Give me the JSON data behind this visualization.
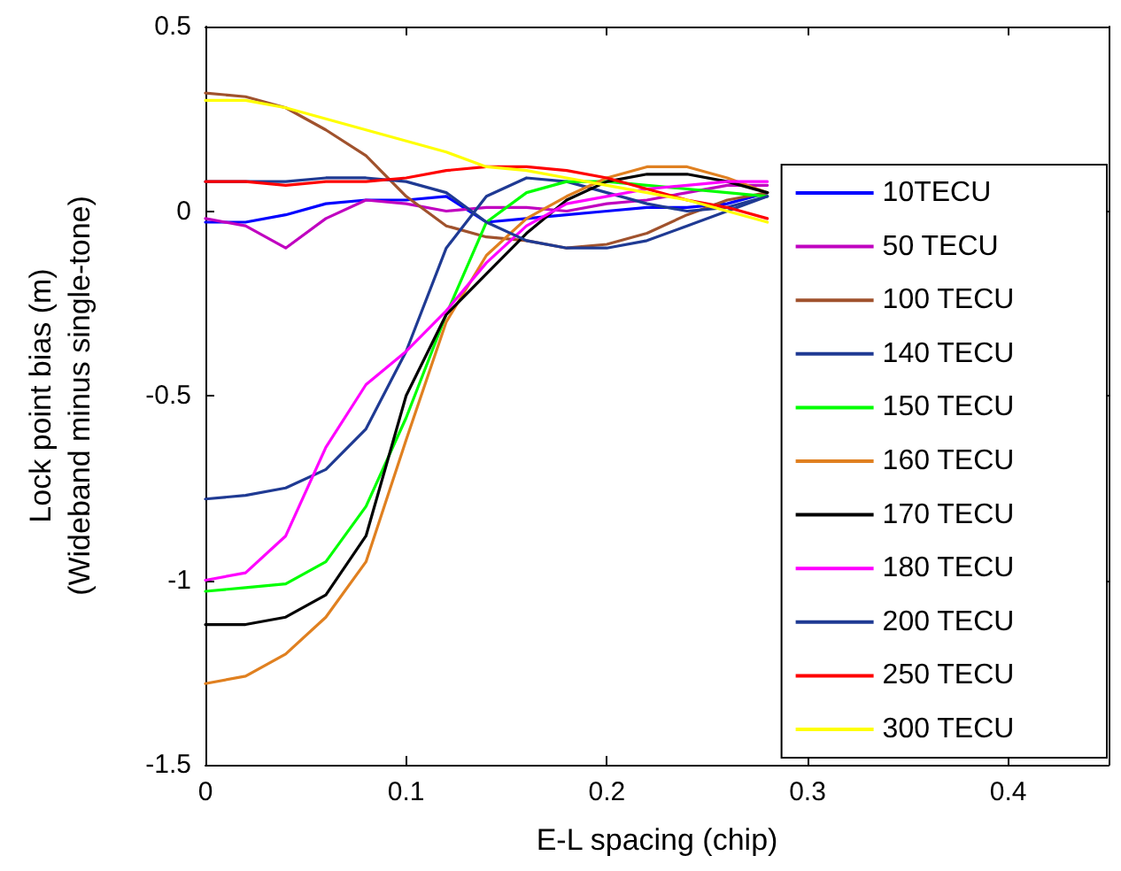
{
  "chart_data": {
    "type": "line",
    "xlabel": "E-L spacing (chip)",
    "ylabel": "Lock point bias (m)\n(Wideband minus single-tone)",
    "x": [
      0,
      0.02,
      0.04,
      0.06,
      0.08,
      0.1,
      0.12,
      0.14,
      0.16,
      0.18,
      0.2,
      0.22,
      0.24,
      0.26,
      0.28
    ],
    "series": [
      {
        "name": "10TECU",
        "color": "#0000ff",
        "values": [
          -0.03,
          -0.03,
          -0.01,
          0.02,
          0.03,
          0.03,
          0.04,
          -0.03,
          -0.02,
          -0.01,
          0.0,
          0.01,
          0.01,
          0.02,
          0.05
        ]
      },
      {
        "name": "50 TECU",
        "color": "#c000c0",
        "values": [
          -0.02,
          -0.04,
          -0.1,
          -0.02,
          0.03,
          0.02,
          0.0,
          0.01,
          0.01,
          0.0,
          0.02,
          0.03,
          0.05,
          0.07,
          0.07
        ]
      },
      {
        "name": "100 TECU",
        "color": "#a0522d",
        "values": [
          0.32,
          0.31,
          0.28,
          0.22,
          0.15,
          0.04,
          -0.04,
          -0.07,
          -0.08,
          -0.1,
          -0.09,
          -0.06,
          -0.01,
          0.03,
          0.05
        ]
      },
      {
        "name": "140 TECU",
        "color": "#1f3a93",
        "values": [
          -0.78,
          -0.77,
          -0.75,
          -0.7,
          -0.59,
          -0.38,
          -0.1,
          0.04,
          0.09,
          0.08,
          0.05,
          0.02,
          0.0,
          0.01,
          0.04
        ]
      },
      {
        "name": "150 TECU",
        "color": "#00ff00",
        "values": [
          -1.03,
          -1.02,
          -1.01,
          -0.95,
          -0.8,
          -0.56,
          -0.28,
          -0.03,
          0.05,
          0.08,
          0.08,
          0.07,
          0.06,
          0.05,
          0.04
        ]
      },
      {
        "name": "160 TECU",
        "color": "#e08020",
        "values": [
          -1.28,
          -1.26,
          -1.2,
          -1.1,
          -0.95,
          -0.62,
          -0.3,
          -0.12,
          -0.02,
          0.04,
          0.09,
          0.12,
          0.12,
          0.09,
          0.05
        ]
      },
      {
        "name": "170 TECU",
        "color": "#000000",
        "values": [
          -1.12,
          -1.12,
          -1.1,
          -1.04,
          -0.88,
          -0.5,
          -0.28,
          -0.17,
          -0.06,
          0.03,
          0.08,
          0.1,
          0.1,
          0.08,
          0.05
        ]
      },
      {
        "name": "180 TECU",
        "color": "#ff00ff",
        "values": [
          -1.0,
          -0.98,
          -0.88,
          -0.64,
          -0.47,
          -0.38,
          -0.27,
          -0.14,
          -0.04,
          0.02,
          0.04,
          0.06,
          0.07,
          0.08,
          0.08
        ]
      },
      {
        "name": "200 TECU",
        "color": "#1f3a93",
        "values": [
          0.08,
          0.08,
          0.08,
          0.09,
          0.09,
          0.08,
          0.05,
          -0.03,
          -0.08,
          -0.1,
          -0.1,
          -0.08,
          -0.04,
          0.0,
          0.04
        ]
      },
      {
        "name": "250 TECU",
        "color": "#ff0000",
        "values": [
          0.08,
          0.08,
          0.07,
          0.08,
          0.08,
          0.09,
          0.11,
          0.12,
          0.12,
          0.11,
          0.09,
          0.06,
          0.03,
          0.01,
          -0.02
        ]
      },
      {
        "name": "300 TECU",
        "color": "#ffff00",
        "values": [
          0.3,
          0.3,
          0.28,
          0.25,
          0.22,
          0.19,
          0.16,
          0.12,
          0.11,
          0.09,
          0.07,
          0.05,
          0.03,
          0.0,
          -0.03
        ]
      }
    ],
    "xlim": [
      0,
      0.45
    ],
    "xticks": [
      0,
      0.1,
      0.2,
      0.3,
      0.4
    ],
    "ylim": [
      -1.5,
      0.5
    ],
    "yticks": [
      -1.5,
      -1,
      -0.5,
      0,
      0.5
    ],
    "grid": false,
    "legend": "bottom right",
    "marker": "none",
    "line_style": "solid"
  }
}
